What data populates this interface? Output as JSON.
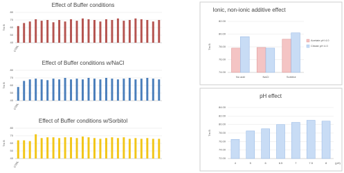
{
  "chart_data": [
    {
      "type": "bar",
      "title": "Effect of Buffer conditions",
      "ylabel": "Tm B",
      "color": "#b55450",
      "categories": [
        "CTRL",
        null,
        null,
        null,
        null,
        null,
        null,
        null,
        null,
        null,
        null,
        null,
        null,
        null,
        null,
        null,
        null,
        null,
        null,
        null,
        null,
        null,
        null,
        null,
        null
      ],
      "values": [
        62,
        66,
        68,
        71,
        69,
        70,
        67,
        70,
        68,
        71,
        69,
        72,
        71,
        70,
        68,
        71,
        70,
        72,
        69,
        70,
        72,
        71,
        70,
        68,
        70
      ],
      "ylim": [
        40,
        80
      ],
      "yticks": [
        40,
        50,
        60,
        70,
        80
      ],
      "grid": true
    },
    {
      "type": "bar",
      "title": "Effect of Buffer conditions w/NaCl",
      "ylabel": "Tm B",
      "color": "#4a7ebb",
      "categories": [
        "CTRL",
        null,
        null,
        null,
        null,
        null,
        null,
        null,
        null,
        null,
        null,
        null,
        null,
        null,
        null,
        null,
        null,
        null,
        null,
        null,
        null,
        null,
        null,
        null,
        null
      ],
      "values": [
        58,
        66,
        68,
        69,
        68,
        67,
        69,
        68,
        70,
        68,
        69,
        68,
        70,
        69,
        68,
        70,
        69,
        68,
        69,
        70,
        68,
        69,
        70,
        69,
        68
      ],
      "ylim": [
        40,
        80
      ],
      "yticks": [
        40,
        50,
        60,
        70,
        80
      ],
      "grid": true
    },
    {
      "type": "bar",
      "title": "Effect of Buffer conditions w/Sorbitol",
      "ylabel": "Tm B",
      "color": "#f2c618",
      "categories": [
        "CTRL",
        null,
        null,
        null,
        null,
        null,
        null,
        null,
        null,
        null,
        null,
        null,
        null,
        null,
        null,
        null,
        null,
        null,
        null,
        null,
        null,
        null,
        null,
        null,
        null
      ],
      "values": [
        64,
        64,
        63,
        72,
        67,
        68,
        68,
        67,
        68,
        68,
        67,
        69,
        68,
        67,
        66,
        67,
        68,
        67,
        68,
        66,
        67,
        66,
        67,
        66,
        66
      ],
      "ylim": [
        40,
        80
      ],
      "yticks": [
        40,
        50,
        60,
        70,
        80
      ],
      "grid": true
    },
    {
      "type": "bar",
      "title": "Ionic, non-ionic additive effect",
      "ylabel": "Tm B",
      "categories": [
        "No add",
        "NaCl",
        "Sorbitol"
      ],
      "series": [
        {
          "name": "Acetate pH 4.0",
          "color": "#f4c4c4",
          "values": [
            77.8,
            77.9,
            79.2
          ]
        },
        {
          "name": "Citrate pH 4.0",
          "color": "#c8dcf5",
          "values": [
            79.6,
            77.8,
            80.2
          ]
        }
      ],
      "ylim": [
        74,
        82
      ],
      "yticks": [
        {
          "value": 74,
          "label": "74.00"
        },
        {
          "value": 76,
          "label": "76.00"
        },
        {
          "value": 78,
          "label": "78.00"
        },
        {
          "value": 80,
          "label": "80.00"
        },
        {
          "value": 82,
          "label": "82.00"
        }
      ],
      "grid": true
    },
    {
      "type": "bar",
      "title": "pH effect",
      "ylabel": "Tm B",
      "xlabel": "(pH)",
      "color": "#c8dcf5",
      "categories": [
        "4",
        "5",
        "6",
        "6.5",
        "7",
        "7.5",
        "8"
      ],
      "values": [
        76.5,
        78.5,
        79,
        80,
        80.5,
        81,
        80.8
      ],
      "ylim": [
        72,
        84
      ],
      "yticks": [
        {
          "value": 72,
          "label": "72.00"
        },
        {
          "value": 74,
          "label": "74.00"
        },
        {
          "value": 76,
          "label": "76.00"
        },
        {
          "value": 78,
          "label": "78.00"
        },
        {
          "value": 80,
          "label": "80.00"
        },
        {
          "value": 82,
          "label": "82.00"
        },
        {
          "value": 84,
          "label": "84.00"
        }
      ],
      "grid": true
    }
  ]
}
